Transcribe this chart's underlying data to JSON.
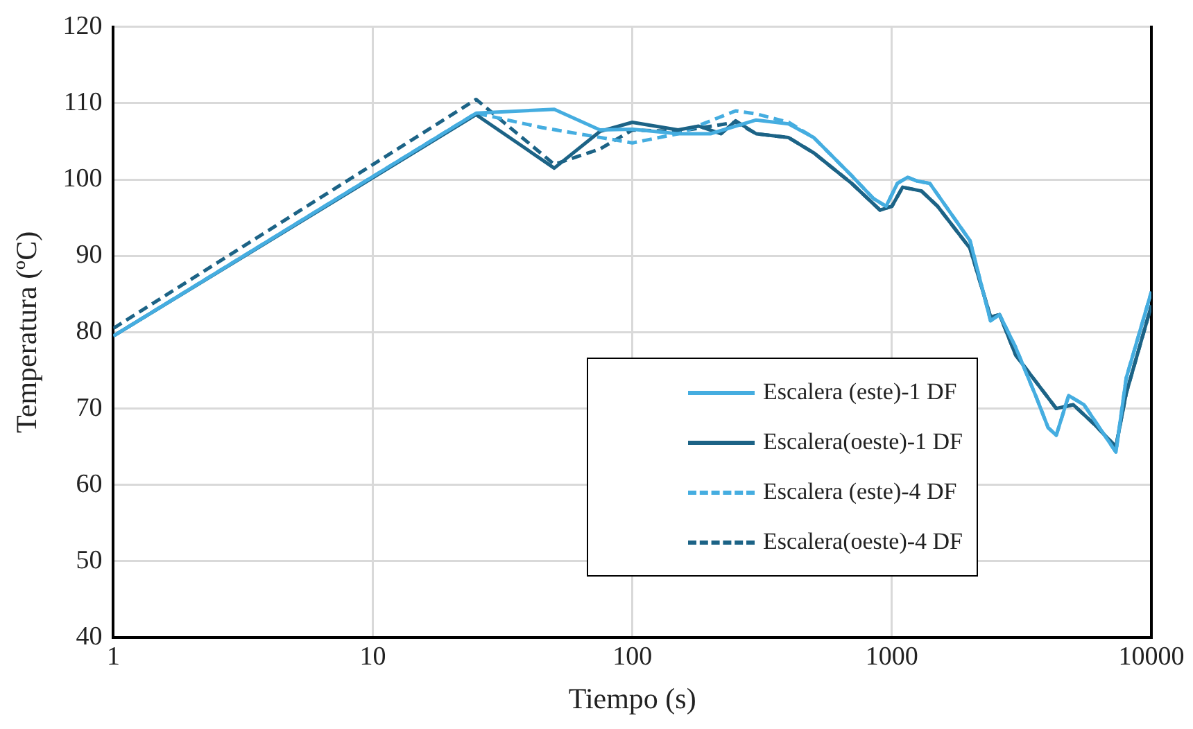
{
  "chart_data": {
    "type": "line",
    "xlabel": "Tiempo (s)",
    "ylabel": "Temperatura (ºC)",
    "log": "x",
    "xlim": [
      1,
      10000
    ],
    "xticks": [
      1,
      10,
      100,
      1000,
      10000
    ],
    "ylim": [
      40,
      120
    ],
    "yticks": [
      40,
      50,
      60,
      70,
      80,
      90,
      100,
      110,
      120
    ],
    "grid": true,
    "legend": "bottom right",
    "marker": "none",
    "series": [
      {
        "name": "Escalera (este)-1 DF",
        "color": "#45ade0",
        "line_style": "solid",
        "x": [
          1,
          25,
          50,
          75,
          100,
          150,
          200,
          300,
          400,
          500,
          700,
          850,
          950,
          1050,
          1150,
          1250,
          1400,
          2000,
          2400,
          2600,
          3000,
          3600,
          4000,
          4300,
          4800,
          5500,
          7300,
          8000,
          10000
        ],
        "values": [
          79.5,
          108.7,
          109.2,
          106.5,
          106.6,
          106,
          106,
          107.8,
          107.3,
          105.5,
          100.5,
          97.5,
          96.5,
          99.5,
          100.3,
          99.8,
          99.5,
          92,
          81.5,
          82.3,
          78,
          71.5,
          67.5,
          66.5,
          71.7,
          70.5,
          64.3,
          74,
          85.3
        ]
      },
      {
        "name": "Escalera(oeste)-1 DF",
        "color": "#1c6386",
        "line_style": "solid",
        "x": [
          1,
          25,
          50,
          75,
          100,
          150,
          180,
          220,
          250,
          300,
          400,
          500,
          700,
          900,
          1000,
          1100,
          1300,
          1500,
          2000,
          2400,
          2600,
          3000,
          4300,
          5000,
          6000,
          7300,
          8000,
          10000
        ],
        "values": [
          79.5,
          108.5,
          101.5,
          106.3,
          107.5,
          106.5,
          107,
          106,
          107.7,
          106,
          105.5,
          103.5,
          99.5,
          96,
          96.5,
          99,
          98.5,
          96.5,
          91,
          82,
          82.3,
          77,
          70,
          70.5,
          68,
          65,
          72,
          83.5
        ]
      },
      {
        "name": "Escalera (este)-4 DF",
        "color": "#45ade0",
        "line_style": "dashed",
        "x": [
          1,
          25,
          45,
          100,
          150,
          250,
          300,
          400,
          500,
          700,
          850,
          950,
          1050,
          1150,
          1250,
          1400,
          2000,
          2400,
          2600,
          3000,
          3600,
          4000,
          4300,
          4800,
          5500,
          7300,
          8000,
          10000
        ],
        "values": [
          79.5,
          108.7,
          106.8,
          104.8,
          106,
          109,
          108.6,
          107.5,
          105.5,
          100.5,
          97.5,
          96.5,
          99.5,
          100.3,
          99.8,
          99.5,
          92,
          81.5,
          82.3,
          78,
          71.5,
          67.5,
          66.5,
          71.7,
          70.5,
          64.3,
          74,
          85.3
        ]
      },
      {
        "name": "Escalera(oeste)-4 DF",
        "color": "#1c6386",
        "line_style": "dashed",
        "x": [
          1,
          25,
          50,
          75,
          100,
          150,
          250,
          300,
          400,
          500,
          700,
          900,
          1000,
          1100,
          1300,
          1500,
          2000,
          2400,
          2600,
          3000,
          4300,
          5000,
          6000,
          7300,
          8000,
          10000
        ],
        "values": [
          80.5,
          110.5,
          102,
          104,
          106.5,
          106.3,
          107.5,
          106,
          105.5,
          103.5,
          99.5,
          96,
          96.5,
          99,
          98.5,
          96.5,
          91,
          82,
          82.3,
          77,
          70,
          70.5,
          68,
          65,
          72,
          83.5
        ]
      }
    ]
  }
}
